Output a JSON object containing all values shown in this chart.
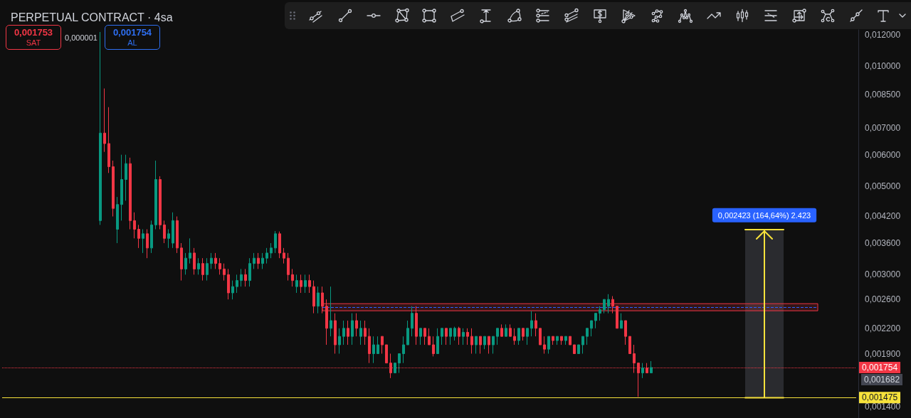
{
  "chart_data": {
    "type": "candlestick",
    "title": "PERPETUAL CONTRACT · 4sa",
    "categories": [
      null,
      null,
      null,
      null,
      null,
      null,
      null,
      null,
      null,
      null,
      null,
      null,
      null,
      null,
      null,
      null,
      null,
      null,
      null,
      null,
      null,
      null,
      null,
      null,
      null,
      null,
      null,
      null,
      null,
      null,
      null,
      null,
      null,
      null,
      null,
      null,
      null,
      null,
      null,
      null,
      null,
      null,
      null,
      null,
      null,
      null,
      null,
      null,
      null,
      null,
      null,
      null,
      null,
      null,
      null,
      null,
      null,
      null,
      null,
      null,
      null,
      null,
      null,
      null,
      null,
      null,
      null,
      null,
      null,
      null,
      null,
      null,
      null,
      null,
      null,
      null,
      null,
      null,
      null,
      null,
      null,
      null,
      null,
      null,
      null,
      null,
      null,
      null,
      null,
      null,
      null,
      null,
      null,
      null,
      null,
      null,
      null,
      null,
      null,
      null,
      null,
      null,
      null,
      null,
      null,
      null,
      null,
      null,
      null,
      null,
      null,
      null,
      null,
      null,
      null,
      null,
      null,
      null,
      null,
      null,
      null,
      null,
      null,
      null,
      null,
      null,
      null,
      null,
      null,
      null,
      null,
      null,
      null,
      null,
      null,
      null,
      null,
      null,
      null,
      null,
      null,
      null,
      null,
      null,
      null,
      null,
      null,
      null,
      null,
      null,
      null,
      null,
      null,
      null,
      null,
      null,
      null,
      null,
      null,
      null,
      null,
      null,
      null,
      null,
      null,
      null,
      null,
      null,
      null,
      null,
      null,
      null,
      null,
      null,
      null,
      null,
      null,
      null,
      null,
      null,
      null,
      null,
      null,
      null,
      null,
      null,
      null,
      null,
      null,
      null,
      null,
      null,
      null,
      null,
      null,
      null,
      null,
      null,
      null,
      null,
      null
    ],
    "ohlc": [
      null,
      null,
      null,
      null,
      null,
      null,
      null,
      null,
      null,
      null,
      null,
      null,
      null,
      null,
      null,
      null,
      null,
      null,
      null,
      null,
      null,
      null,
      null,
      [
        0.0041,
        0.0122,
        0.004,
        0.0068
      ],
      [
        0.0068,
        0.0088,
        0.0061,
        0.0064
      ],
      [
        0.0064,
        0.0079,
        0.0054,
        0.0056
      ],
      [
        0.0056,
        0.0058,
        0.0042,
        0.0044
      ],
      [
        0.0039,
        0.0047,
        0.0036,
        0.0045
      ],
      [
        0.0045,
        0.006,
        0.0041,
        0.0052
      ],
      [
        0.0052,
        0.006,
        0.0046,
        0.0057
      ],
      [
        0.0057,
        0.0059,
        0.0039,
        0.0041
      ],
      [
        0.0041,
        0.0043,
        0.0037,
        0.0039
      ],
      [
        0.0039,
        0.004,
        0.0035,
        0.0037
      ],
      [
        0.0037,
        0.0039,
        0.0034,
        0.0038
      ],
      [
        0.0038,
        0.0039,
        0.0033,
        0.0035
      ],
      [
        0.0035,
        0.0041,
        0.0034,
        0.004
      ],
      [
        0.004,
        0.0058,
        0.0039,
        0.0052
      ],
      [
        0.0052,
        0.0053,
        0.0039,
        0.004
      ],
      [
        0.004,
        0.0041,
        0.0036,
        0.0037
      ],
      [
        0.0037,
        0.0039,
        0.0035,
        0.0038
      ],
      [
        0.0036,
        0.0043,
        0.0035,
        0.0041
      ],
      [
        0.0041,
        0.0042,
        0.0034,
        0.0035
      ],
      [
        0.0035,
        0.0036,
        0.0029,
        0.0031
      ],
      [
        0.0031,
        0.0034,
        0.003,
        0.0033
      ],
      [
        0.0033,
        0.0037,
        0.0032,
        0.0034
      ],
      [
        0.0034,
        0.0035,
        0.003,
        0.0031
      ],
      [
        0.0031,
        0.0033,
        0.003,
        0.0032
      ],
      [
        0.0032,
        0.0033,
        0.0029,
        0.003
      ],
      [
        0.003,
        0.0033,
        0.0029,
        0.0032
      ],
      [
        0.0032,
        0.0034,
        0.0031,
        0.0033
      ],
      [
        0.0033,
        0.0034,
        0.0031,
        0.0032
      ],
      [
        0.0032,
        0.0033,
        0.003,
        0.0031
      ],
      [
        0.0031,
        0.0032,
        0.0029,
        0.003
      ],
      [
        0.003,
        0.0031,
        0.0026,
        0.0027
      ],
      [
        0.0027,
        0.0029,
        0.0026,
        0.0028
      ],
      [
        0.0028,
        0.003,
        0.0027,
        0.0029
      ],
      [
        0.0029,
        0.0031,
        0.0028,
        0.003
      ],
      [
        0.003,
        0.0031,
        0.0028,
        0.0029
      ],
      [
        0.0029,
        0.0033,
        0.0028,
        0.0032
      ],
      [
        0.0032,
        0.0034,
        0.0031,
        0.0033
      ],
      [
        0.0033,
        0.0034,
        0.0031,
        0.0032
      ],
      [
        0.0032,
        0.0034,
        0.0031,
        0.0033
      ],
      [
        0.0033,
        0.0035,
        0.0032,
        0.0034
      ],
      [
        0.0034,
        0.0036,
        0.0033,
        0.0035
      ],
      [
        0.0035,
        0.00386,
        0.0034,
        0.0038
      ],
      [
        0.0038,
        0.00385,
        0.0033,
        0.0034
      ],
      [
        0.0034,
        0.0035,
        0.0032,
        0.0033
      ],
      [
        0.0033,
        0.0034,
        0.0029,
        0.003
      ],
      [
        0.003,
        0.0031,
        0.0028,
        0.0029
      ],
      [
        0.0028,
        0.003,
        0.0027,
        0.0029
      ],
      [
        0.0029,
        0.003,
        0.0027,
        0.0028
      ],
      [
        0.0028,
        0.003,
        0.0027,
        0.0029
      ],
      [
        0.0029,
        0.003,
        0.0027,
        0.0028
      ],
      [
        0.0028,
        0.0029,
        0.0024,
        0.0025
      ],
      [
        0.0025,
        0.0028,
        0.0024,
        0.0027
      ],
      [
        0.0027,
        0.0028,
        0.0024,
        0.0025
      ],
      [
        0.0025,
        0.0026,
        0.002,
        0.0022
      ],
      [
        0.0022,
        0.0028,
        0.0021,
        0.0023
      ],
      [
        0.0023,
        0.0024,
        0.0019,
        0.002
      ],
      [
        0.002,
        0.0022,
        0.0019,
        0.0021
      ],
      [
        0.0021,
        0.0023,
        0.002,
        0.0022
      ],
      [
        0.0022,
        0.0023,
        0.002,
        0.0021
      ],
      [
        0.0021,
        0.0024,
        0.002,
        0.0023
      ],
      [
        0.0023,
        0.0024,
        0.0021,
        0.0022
      ],
      [
        0.0021,
        0.0023,
        0.002,
        0.0022
      ],
      [
        0.0022,
        0.0023,
        0.002,
        0.0021
      ],
      [
        0.0021,
        0.0022,
        0.0018,
        0.0019
      ],
      [
        0.0019,
        0.0021,
        0.0018,
        0.002
      ],
      [
        0.0019,
        0.0021,
        0.0019,
        0.002
      ],
      [
        0.0021,
        0.0021,
        0.0019,
        0.002
      ],
      [
        0.002,
        0.002,
        0.0018,
        0.0018
      ],
      [
        0.0018,
        0.0019,
        0.00165,
        0.0017
      ],
      [
        0.0017,
        0.0018,
        0.0017,
        0.0018
      ],
      [
        0.0018,
        0.0019,
        0.0017,
        0.0019
      ],
      [
        0.0019,
        0.0021,
        0.0018,
        0.002
      ],
      [
        0.002,
        0.0023,
        0.002,
        0.0022
      ],
      [
        0.0022,
        0.0025,
        0.0021,
        0.0024
      ],
      [
        0.0024,
        0.0025,
        0.002,
        0.0021
      ],
      [
        0.0021,
        0.0022,
        0.002,
        0.0022
      ],
      [
        0.0022,
        0.0022,
        0.002,
        0.0021
      ],
      [
        0.0021,
        0.0022,
        0.002,
        0.002
      ],
      [
        0.002,
        0.0021,
        0.00187,
        0.0019
      ],
      [
        0.0019,
        0.0022,
        0.0019,
        0.0021
      ],
      [
        0.0021,
        0.0022,
        0.002,
        0.0022
      ],
      [
        0.0022,
        0.0022,
        0.002,
        0.0021
      ],
      [
        0.0021,
        0.0022,
        0.002,
        0.0022
      ],
      [
        0.0021,
        0.00222,
        0.00205,
        0.0022
      ],
      [
        0.0022,
        0.00222,
        0.002,
        0.0021
      ],
      [
        0.0021,
        0.0022,
        0.002,
        0.00215
      ],
      [
        0.00215,
        0.0022,
        0.002,
        0.0021
      ],
      [
        0.0021,
        0.0022,
        0.0019,
        0.002
      ],
      [
        0.002,
        0.0021,
        0.0019,
        0.0021
      ],
      [
        0.0021,
        0.0021,
        0.0019,
        0.002
      ],
      [
        0.002,
        0.0021,
        0.00195,
        0.0021
      ],
      [
        0.0021,
        0.0021,
        0.0019,
        0.002
      ],
      [
        0.002,
        0.0021,
        0.0019,
        0.0021
      ],
      [
        0.0021,
        0.0022,
        0.002,
        0.0022
      ],
      [
        0.0022,
        0.00225,
        0.0021,
        0.0021
      ],
      [
        0.0021,
        0.00225,
        0.0021,
        0.0022
      ],
      [
        0.0022,
        0.00225,
        0.0021,
        0.0021
      ],
      [
        0.0021,
        0.0022,
        0.002,
        0.00205
      ],
      [
        0.00205,
        0.0022,
        0.002,
        0.0022
      ],
      [
        0.0022,
        0.0022,
        0.00205,
        0.0021
      ],
      [
        0.0021,
        0.0022,
        0.002,
        0.0022
      ],
      [
        0.0022,
        0.00243,
        0.0021,
        0.0023
      ],
      [
        0.0023,
        0.0024,
        0.0021,
        0.0022
      ],
      [
        0.0022,
        0.0022,
        0.002,
        0.002
      ],
      [
        0.002,
        0.0021,
        0.0019,
        0.00195
      ],
      [
        0.00195,
        0.0021,
        0.0019,
        0.0021
      ],
      [
        0.0021,
        0.0021,
        0.002,
        0.00205
      ],
      [
        0.00205,
        0.0021,
        0.002,
        0.0021
      ],
      [
        0.0021,
        0.0021,
        0.002,
        0.00205
      ],
      [
        0.00205,
        0.0021,
        0.002,
        0.0021
      ],
      [
        0.0021,
        0.0021,
        0.002,
        0.002
      ],
      [
        0.002,
        0.002,
        0.0019,
        0.0019
      ],
      [
        0.0019,
        0.002,
        0.0019,
        0.002
      ],
      [
        0.002,
        0.0021,
        0.0019,
        0.0021
      ],
      [
        0.0021,
        0.0022,
        0.002,
        0.0022
      ],
      [
        0.0022,
        0.0023,
        0.0021,
        0.0023
      ],
      [
        0.0023,
        0.0024,
        0.0022,
        0.0024
      ],
      [
        0.0024,
        0.0025,
        0.0023,
        0.00245
      ],
      [
        0.00245,
        0.0026,
        0.0024,
        0.0026
      ],
      [
        0.0025,
        0.00268,
        0.0024,
        0.0026
      ],
      [
        0.0026,
        0.00265,
        0.0024,
        0.0025
      ],
      [
        0.0025,
        0.0025,
        0.0022,
        0.0022
      ],
      [
        0.0022,
        0.0024,
        0.0022,
        0.0023
      ],
      [
        0.0023,
        0.0023,
        0.002,
        0.0021
      ],
      [
        0.0021,
        0.0021,
        0.0019,
        0.0019
      ],
      [
        0.0019,
        0.002,
        0.0017,
        0.0018
      ],
      [
        0.0018,
        0.0018,
        0.00148,
        0.0017
      ],
      [
        0.0017,
        0.0018,
        0.00165,
        0.00175
      ],
      [
        0.00175,
        0.0018,
        0.0017,
        0.0017
      ],
      [
        0.0017,
        0.00182,
        0.0017,
        0.001754
      ],
      null,
      null,
      null,
      null,
      null,
      null,
      null,
      null,
      null,
      null,
      null,
      null,
      null,
      null,
      null,
      null,
      null,
      null,
      null,
      null,
      null,
      null,
      null,
      null,
      null,
      null,
      null,
      null,
      null,
      null,
      null,
      null,
      null,
      null,
      null,
      null,
      null,
      null,
      null,
      null,
      null,
      null,
      null,
      null,
      null,
      null,
      null,
      null
    ],
    "colors": [
      null,
      null,
      null,
      null,
      null,
      null,
      null,
      null,
      null,
      null,
      null,
      null,
      null,
      null,
      null,
      null,
      null,
      null,
      null,
      null,
      null,
      null,
      null,
      "#089981",
      "#f23645",
      "#f23645",
      "#f23645",
      "#089981",
      "#089981",
      "#089981",
      "#f23645",
      "#f23645",
      "#f23645",
      "#089981",
      "#f23645",
      "#089981",
      "#089981",
      "#f23645",
      "#f23645",
      "#089981",
      "#089981",
      "#f23645",
      "#f23645",
      "#089981",
      "#089981",
      "#f23645",
      "#089981",
      "#f23645",
      "#089981",
      "#089981",
      "#f23645",
      "#f23645",
      "#f23645",
      "#f23645",
      "#089981",
      "#089981",
      "#089981",
      "#f23645",
      "#089981",
      "#089981",
      "#f23645",
      "#089981",
      "#089981",
      "#089981",
      "#089981",
      "#f23645",
      "#f23645",
      "#f23645",
      "#f23645",
      "#089981",
      "#f23645",
      "#089981",
      "#f23645",
      "#f23645",
      "#089981",
      "#f23645",
      "#f23645",
      "#089981",
      "#f23645",
      "#089981",
      "#089981",
      "#f23645",
      "#089981",
      "#f23645",
      "#089981",
      "#f23645",
      "#f23645",
      "#089981",
      "#089981",
      "#f23645",
      "#f23645",
      "#f23645",
      "#089981",
      "#089981",
      "#089981",
      "#089981",
      "#089981",
      "#f23645",
      "#089981",
      "#f23645",
      "#f23645",
      "#f23645",
      "#089981",
      "#089981",
      "#f23645",
      "#089981",
      "#089981",
      "#f23645",
      "#089981",
      "#f23645",
      "#f23645",
      "#089981",
      "#f23645",
      "#089981",
      "#f23645",
      "#089981",
      "#089981",
      "#f23645",
      "#089981",
      "#f23645",
      "#f23645",
      "#089981",
      "#f23645",
      "#089981",
      "#089981",
      "#f23645",
      "#f23645",
      "#f23645",
      "#089981",
      "#f23645",
      "#089981",
      "#f23645",
      "#089981",
      "#f23645",
      "#f23645",
      "#089981",
      "#089981",
      "#089981",
      "#089981",
      "#089981",
      "#089981",
      "#089981",
      "#089981",
      "#f23645",
      "#f23645",
      "#089981",
      "#f23645",
      "#f23645",
      "#f23645",
      "#f23645",
      "#089981",
      "#f23645",
      "#089981",
      null,
      null,
      null,
      null,
      null,
      null,
      null,
      null,
      null,
      null,
      null,
      null,
      null,
      null,
      null,
      null,
      null,
      null,
      null,
      null,
      null,
      null,
      null,
      null,
      null,
      null,
      null,
      null,
      null,
      null,
      null,
      null,
      null,
      null,
      null,
      null,
      null,
      null,
      null,
      null,
      null,
      null,
      null,
      null,
      null,
      null,
      null,
      null
    ],
    "ylim": [
      0.00131,
      0.01235
    ],
    "yticks": [
      {
        "value": 0.0014,
        "label": "0,001400"
      },
      {
        "value": 0.0019,
        "label": "0,001900"
      },
      {
        "value": 0.0022,
        "label": "0,002200"
      },
      {
        "value": 0.0026,
        "label": "0,002600"
      },
      {
        "value": 0.003,
        "label": "0,003000"
      },
      {
        "value": 0.0036,
        "label": "0,003600"
      },
      {
        "value": 0.0042,
        "label": "0,004200"
      },
      {
        "value": 0.005,
        "label": "0,005000"
      },
      {
        "value": 0.006,
        "label": "0,006000"
      },
      {
        "value": 0.007,
        "label": "0,007000"
      },
      {
        "value": 0.0085,
        "label": "0,008500"
      },
      {
        "value": 0.01,
        "label": "0,010000"
      },
      {
        "value": 0.012,
        "label": "0,012000"
      }
    ],
    "log": true,
    "tick_labels": "y",
    "ref_lines": [
      {
        "axis": "y",
        "value": 0.001475,
        "label": "0,001475",
        "color": "#f7e23b"
      },
      {
        "axis": "y",
        "value": 0.001754,
        "label": "0,001754",
        "color": "#f23645",
        "line_style": "dotted"
      },
      {
        "axis": "y",
        "value": 0.002485,
        "color": "#2962ff",
        "line_style": "dashed"
      }
    ],
    "bands": [
      {
        "axis": "y",
        "from": 0.001475,
        "to": 0.003898,
        "label": "0,002423 (164,64%) 2.423",
        "color": "#2a2b2f"
      },
      {
        "axis": "y",
        "from": 0.002435,
        "to": 0.002537,
        "color": "#f23645"
      }
    ],
    "annotations": [
      "0,001753",
      "SAT",
      "0,000001",
      "0,001754",
      "AL",
      "0,001682"
    ]
  }
}
